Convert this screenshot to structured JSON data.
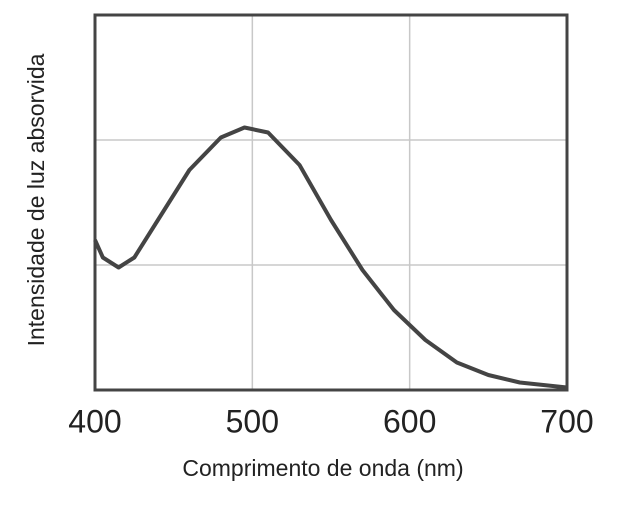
{
  "chart_data": {
    "type": "line",
    "x_label": "Comprimento de onda (nm)",
    "y_label": "Intensidade de luz absorvida",
    "x": [
      400,
      405,
      415,
      425,
      440,
      460,
      480,
      495,
      510,
      530,
      550,
      570,
      590,
      610,
      630,
      650,
      670,
      700
    ],
    "series": [
      {
        "color": "#444444",
        "values": [
          1.2,
          1.06,
          0.98,
          1.06,
          1.36,
          1.76,
          2.02,
          2.1,
          2.06,
          1.8,
          1.36,
          0.96,
          0.64,
          0.4,
          0.22,
          0.12,
          0.06,
          0.02
        ]
      }
    ],
    "xlim": [
      400,
      700
    ],
    "xticks": [
      400,
      500,
      600,
      700
    ],
    "ylim": [
      0,
      3
    ],
    "yticks": [
      1,
      2
    ],
    "y_tick_labels": false,
    "grid": true
  }
}
